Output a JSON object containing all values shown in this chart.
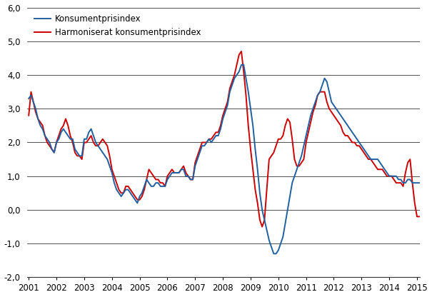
{
  "kpi_label": "Konsumentprisindex",
  "hicp_label": "Harmoniserat konsumentprisindex",
  "kpi_color": "#2060a0",
  "hicp_color": "#cc0000",
  "line_width": 1.4,
  "ylim": [
    -2.0,
    6.0
  ],
  "yticks": [
    -2.0,
    -1.0,
    0.0,
    1.0,
    2.0,
    3.0,
    4.0,
    5.0,
    6.0
  ],
  "background_color": "#ffffff",
  "grid_color": "#555555",
  "x_start_year": 2001,
  "x_end_year": 2015,
  "xtick_years": [
    2001,
    2002,
    2003,
    2004,
    2005,
    2006,
    2007,
    2008,
    2009,
    2010,
    2011,
    2012,
    2013,
    2014,
    2015
  ],
  "kpi": [
    3.3,
    3.4,
    3.2,
    3.0,
    2.7,
    2.5,
    2.4,
    2.2,
    2.1,
    2.0,
    1.8,
    1.7,
    2.0,
    2.1,
    2.3,
    2.4,
    2.3,
    2.2,
    2.1,
    2.1,
    1.8,
    1.7,
    1.6,
    1.6,
    2.1,
    2.1,
    2.3,
    2.4,
    2.2,
    2.0,
    1.9,
    1.8,
    1.7,
    1.6,
    1.5,
    1.3,
    1.1,
    0.8,
    0.6,
    0.5,
    0.4,
    0.5,
    0.6,
    0.6,
    0.5,
    0.4,
    0.3,
    0.2,
    0.4,
    0.5,
    0.7,
    0.9,
    0.8,
    0.7,
    0.7,
    0.8,
    0.8,
    0.7,
    0.7,
    0.7,
    0.9,
    1.0,
    1.1,
    1.1,
    1.1,
    1.1,
    1.2,
    1.2,
    1.0,
    1.0,
    0.9,
    0.9,
    1.3,
    1.5,
    1.7,
    1.9,
    1.9,
    2.0,
    2.1,
    2.0,
    2.1,
    2.2,
    2.2,
    2.4,
    2.7,
    2.9,
    3.1,
    3.5,
    3.7,
    3.9,
    4.0,
    4.1,
    4.3,
    4.3,
    3.9,
    3.5,
    3.0,
    2.5,
    1.8,
    1.2,
    0.5,
    0.0,
    -0.3,
    -0.6,
    -0.9,
    -1.1,
    -1.3,
    -1.3,
    -1.2,
    -1.0,
    -0.8,
    -0.4,
    0.0,
    0.4,
    0.8,
    1.0,
    1.2,
    1.4,
    1.6,
    1.9,
    2.2,
    2.5,
    2.8,
    3.0,
    3.2,
    3.4,
    3.5,
    3.7,
    3.9,
    3.8,
    3.5,
    3.2,
    3.1,
    3.0,
    2.9,
    2.8,
    2.7,
    2.6,
    2.5,
    2.4,
    2.3,
    2.2,
    2.1,
    2.0,
    1.9,
    1.8,
    1.7,
    1.6,
    1.5,
    1.5,
    1.5,
    1.5,
    1.4,
    1.3,
    1.2,
    1.1,
    1.0,
    1.0,
    1.0,
    1.0,
    0.9,
    0.9,
    0.8,
    0.8,
    0.9,
    0.9,
    0.8,
    0.8,
    0.8,
    0.8,
    0.8
  ],
  "hicp": [
    2.8,
    3.5,
    3.2,
    2.9,
    2.7,
    2.6,
    2.5,
    2.2,
    2.0,
    1.9,
    1.8,
    1.7,
    2.0,
    2.2,
    2.4,
    2.5,
    2.7,
    2.5,
    2.2,
    2.0,
    1.7,
    1.6,
    1.6,
    1.5,
    2.0,
    2.0,
    2.1,
    2.2,
    2.0,
    1.9,
    1.9,
    2.0,
    2.1,
    2.0,
    1.9,
    1.6,
    1.2,
    1.0,
    0.8,
    0.6,
    0.5,
    0.5,
    0.7,
    0.7,
    0.6,
    0.5,
    0.4,
    0.3,
    0.3,
    0.4,
    0.6,
    0.9,
    1.2,
    1.1,
    1.0,
    0.9,
    0.9,
    0.8,
    0.8,
    0.7,
    1.0,
    1.1,
    1.2,
    1.1,
    1.1,
    1.1,
    1.2,
    1.3,
    1.1,
    1.0,
    0.9,
    0.9,
    1.4,
    1.6,
    1.8,
    2.0,
    2.0,
    2.0,
    2.1,
    2.1,
    2.2,
    2.3,
    2.3,
    2.5,
    2.8,
    3.0,
    3.2,
    3.6,
    3.8,
    4.0,
    4.3,
    4.6,
    4.7,
    4.1,
    3.4,
    2.5,
    1.8,
    1.2,
    0.6,
    0.2,
    -0.3,
    -0.5,
    -0.3,
    0.6,
    1.5,
    1.6,
    1.7,
    1.9,
    2.1,
    2.1,
    2.2,
    2.5,
    2.7,
    2.6,
    2.1,
    1.5,
    1.3,
    1.3,
    1.4,
    1.5,
    2.0,
    2.3,
    2.6,
    2.9,
    3.1,
    3.4,
    3.5,
    3.5,
    3.5,
    3.2,
    3.0,
    2.9,
    2.8,
    2.7,
    2.6,
    2.5,
    2.3,
    2.2,
    2.2,
    2.1,
    2.0,
    2.0,
    1.9,
    1.9,
    1.8,
    1.7,
    1.6,
    1.5,
    1.5,
    1.4,
    1.3,
    1.2,
    1.2,
    1.2,
    1.1,
    1.0,
    1.0,
    1.0,
    0.9,
    0.8,
    0.8,
    0.8,
    0.7,
    1.1,
    1.4,
    1.5,
    0.8,
    0.2,
    -0.2,
    -0.2,
    -0.2
  ]
}
